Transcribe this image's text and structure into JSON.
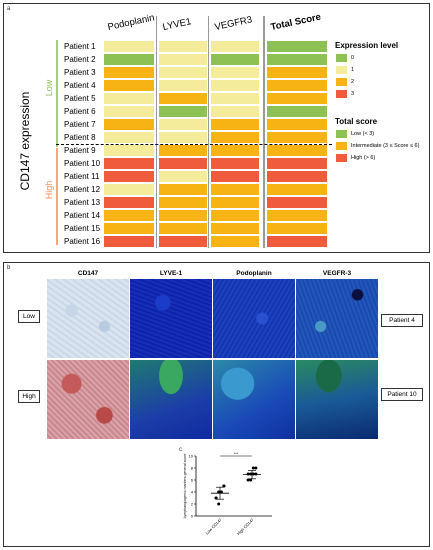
{
  "panel_a": {
    "letter": "a",
    "axis_title": "CD147 expression",
    "columns": [
      "Podoplanin",
      "LYVE1",
      "VEGFR3"
    ],
    "total_header": "Total Score",
    "group_low": "Low",
    "group_high": "High",
    "patients": [
      "Patient 1",
      "Patient 2",
      "Patient 3",
      "Patient 4",
      "Patient 5",
      "Patient 6",
      "Patient 7",
      "Patient 8",
      "Patient 9",
      "Patient 10",
      "Patient 11",
      "Patient 12",
      "Patient 13",
      "Patient 14",
      "Patient 15",
      "Patient 16"
    ],
    "expression_levels": [
      [
        1,
        1,
        1
      ],
      [
        0,
        1,
        0
      ],
      [
        2,
        1,
        1
      ],
      [
        2,
        1,
        1
      ],
      [
        1,
        2,
        1
      ],
      [
        1,
        0,
        1
      ],
      [
        2,
        1,
        2
      ],
      [
        1,
        1,
        2
      ],
      [
        1,
        2,
        2
      ],
      [
        3,
        3,
        3
      ],
      [
        3,
        1,
        3
      ],
      [
        1,
        2,
        2
      ],
      [
        3,
        2,
        2
      ],
      [
        2,
        2,
        2
      ],
      [
        2,
        2,
        2
      ],
      [
        3,
        3,
        2
      ]
    ],
    "total_scores": [
      0,
      0,
      1,
      1,
      1,
      0,
      1,
      1,
      1,
      2,
      2,
      1,
      2,
      1,
      1,
      2
    ],
    "legend_expr_title": "Expression level",
    "legend_expr_items": [
      {
        "label": "0",
        "color": "#8dc153"
      },
      {
        "label": "1",
        "color": "#f4ec9a"
      },
      {
        "label": "2",
        "color": "#f7b314"
      },
      {
        "label": "3",
        "color": "#ef5b3b"
      }
    ],
    "legend_total_title": "Total score",
    "legend_total_items": [
      {
        "label": "Low (< 3)",
        "color": "#8dc153"
      },
      {
        "label": "Intermediate (3 ≤ Score ≤ 6)",
        "color": "#f7b314"
      },
      {
        "label": "High (> 6)",
        "color": "#ef5b3b"
      }
    ]
  },
  "panel_b": {
    "letter": "b",
    "columns": [
      "CD147",
      "LYVE-1",
      "Podoplanin",
      "VEGFR-3"
    ],
    "row_low": "Low",
    "row_high": "High",
    "patient_low": "Patient  4",
    "patient_high": "Patient 10"
  },
  "panel_c": {
    "letter": "c",
    "significance": "***",
    "chart_data": {
      "type": "scatter",
      "ylabel": "Lymphangiogenic markers general score",
      "categories": [
        "Low CD147",
        "High CD147"
      ],
      "ylim": [
        0,
        10
      ],
      "yticks": [
        0,
        2,
        4,
        6,
        8,
        10
      ],
      "series": [
        {
          "values": [
            3,
            4,
            4,
            5,
            3,
            2,
            4,
            5
          ]
        },
        {
          "values": [
            7,
            6,
            8,
            7,
            6,
            7,
            7,
            8
          ]
        }
      ],
      "means": [
        3.8,
        6.9
      ],
      "sd": [
        1.0,
        0.7
      ]
    }
  }
}
